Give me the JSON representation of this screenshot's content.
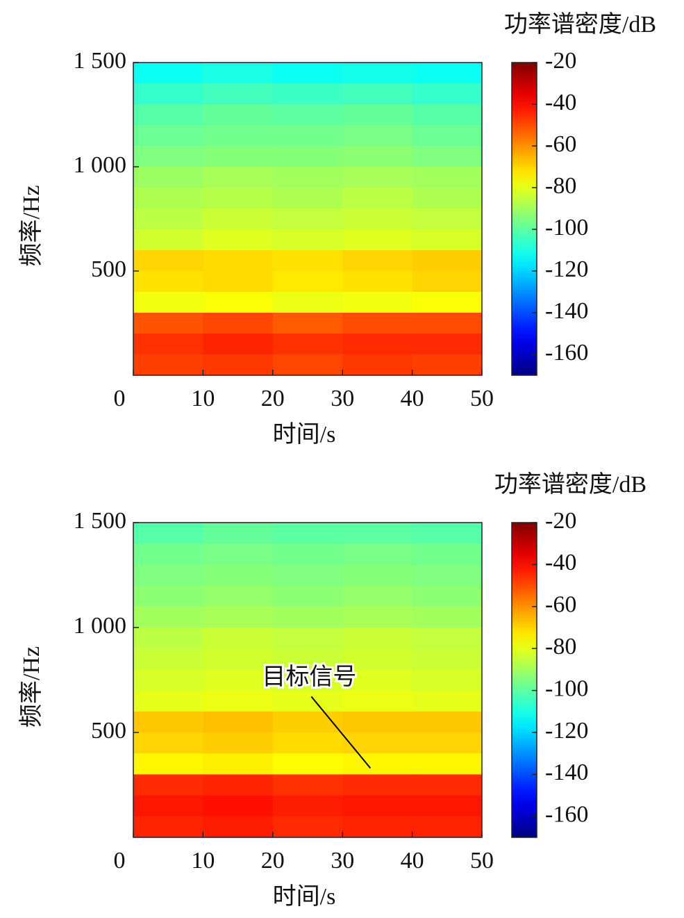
{
  "chart_data": [
    {
      "type": "heatmap",
      "colorbar_label": "功率谱密度/dB",
      "xlabel": "时间/s",
      "ylabel": "频率/Hz",
      "colormap": "jet",
      "x": [
        5,
        15,
        25,
        35,
        45
      ],
      "y": [
        1450,
        1350,
        1250,
        1150,
        1050,
        950,
        850,
        750,
        650,
        550,
        450,
        350,
        250,
        150,
        50
      ],
      "z": [
        [
          -112,
          -110,
          -112,
          -111,
          -112
        ],
        [
          -106,
          -104,
          -105,
          -104,
          -106
        ],
        [
          -101,
          -99,
          -100,
          -99,
          -101
        ],
        [
          -98,
          -97,
          -97,
          -96,
          -98
        ],
        [
          -95,
          -94,
          -94,
          -93,
          -95
        ],
        [
          -91,
          -89,
          -90,
          -89,
          -90
        ],
        [
          -88,
          -87,
          -88,
          -86,
          -88
        ],
        [
          -86,
          -84,
          -85,
          -84,
          -85
        ],
        [
          -83,
          -81,
          -82,
          -81,
          -82
        ],
        [
          -70,
          -71,
          -72,
          -70,
          -69
        ],
        [
          -72,
          -71,
          -73,
          -72,
          -70
        ],
        [
          -78,
          -77,
          -79,
          -78,
          -77
        ],
        [
          -51,
          -49,
          -52,
          -50,
          -50
        ],
        [
          -46,
          -44,
          -46,
          -45,
          -45
        ],
        [
          -48,
          -47,
          -49,
          -47,
          -48
        ]
      ],
      "xlim": [
        0,
        50
      ],
      "xticks": [
        0,
        10,
        20,
        30,
        40,
        50
      ],
      "ylim": [
        0,
        1500
      ],
      "yticks": [
        500,
        {
          "value": 1000,
          "label": "1 000"
        },
        {
          "value": 1500,
          "label": "1 500"
        }
      ],
      "clim": [
        -170,
        -20
      ],
      "cticks": [
        -20,
        -40,
        -60,
        -80,
        -100,
        -120,
        -140,
        -160
      ]
    },
    {
      "type": "heatmap",
      "colorbar_label": "功率谱密度/dB",
      "xlabel": "时间/s",
      "ylabel": "频率/Hz",
      "colormap": "jet",
      "x": [
        5,
        15,
        25,
        35,
        45
      ],
      "y": [
        1450,
        1350,
        1250,
        1150,
        1050,
        950,
        850,
        750,
        650,
        550,
        450,
        350,
        250,
        150,
        50
      ],
      "z": [
        [
          -101,
          -99,
          -100,
          -100,
          -101
        ],
        [
          -97,
          -96,
          -97,
          -96,
          -97
        ],
        [
          -95,
          -94,
          -95,
          -94,
          -95
        ],
        [
          -93,
          -92,
          -93,
          -92,
          -93
        ],
        [
          -90,
          -89,
          -90,
          -89,
          -90
        ],
        [
          -86,
          -84,
          -85,
          -84,
          -85
        ],
        [
          -84,
          -83,
          -84,
          -83,
          -84
        ],
        [
          -82,
          -81,
          -82,
          -81,
          -82
        ],
        [
          -80,
          -79,
          -80,
          -79,
          -80
        ],
        [
          -68,
          -67,
          -69,
          -68,
          -68
        ],
        [
          -70,
          -69,
          -71,
          -70,
          -70
        ],
        [
          -75,
          -74,
          -76,
          -75,
          -75
        ],
        [
          -45,
          -44,
          -46,
          -45,
          -45
        ],
        [
          -42,
          -41,
          -43,
          -42,
          -42
        ],
        [
          -44,
          -43,
          -45,
          -44,
          -44
        ]
      ],
      "xlim": [
        0,
        50
      ],
      "xticks": [
        0,
        10,
        20,
        30,
        40,
        50
      ],
      "ylim": [
        0,
        1500
      ],
      "yticks": [
        500,
        {
          "value": 1000,
          "label": "1 000"
        },
        {
          "value": 1500,
          "label": "1 500"
        }
      ],
      "clim": [
        -170,
        -20
      ],
      "cticks": [
        -20,
        -40,
        -60,
        -80,
        -100,
        -120,
        -140,
        -160
      ],
      "annotation": {
        "text": "目标信号",
        "x": 34,
        "y": 330
      }
    }
  ]
}
